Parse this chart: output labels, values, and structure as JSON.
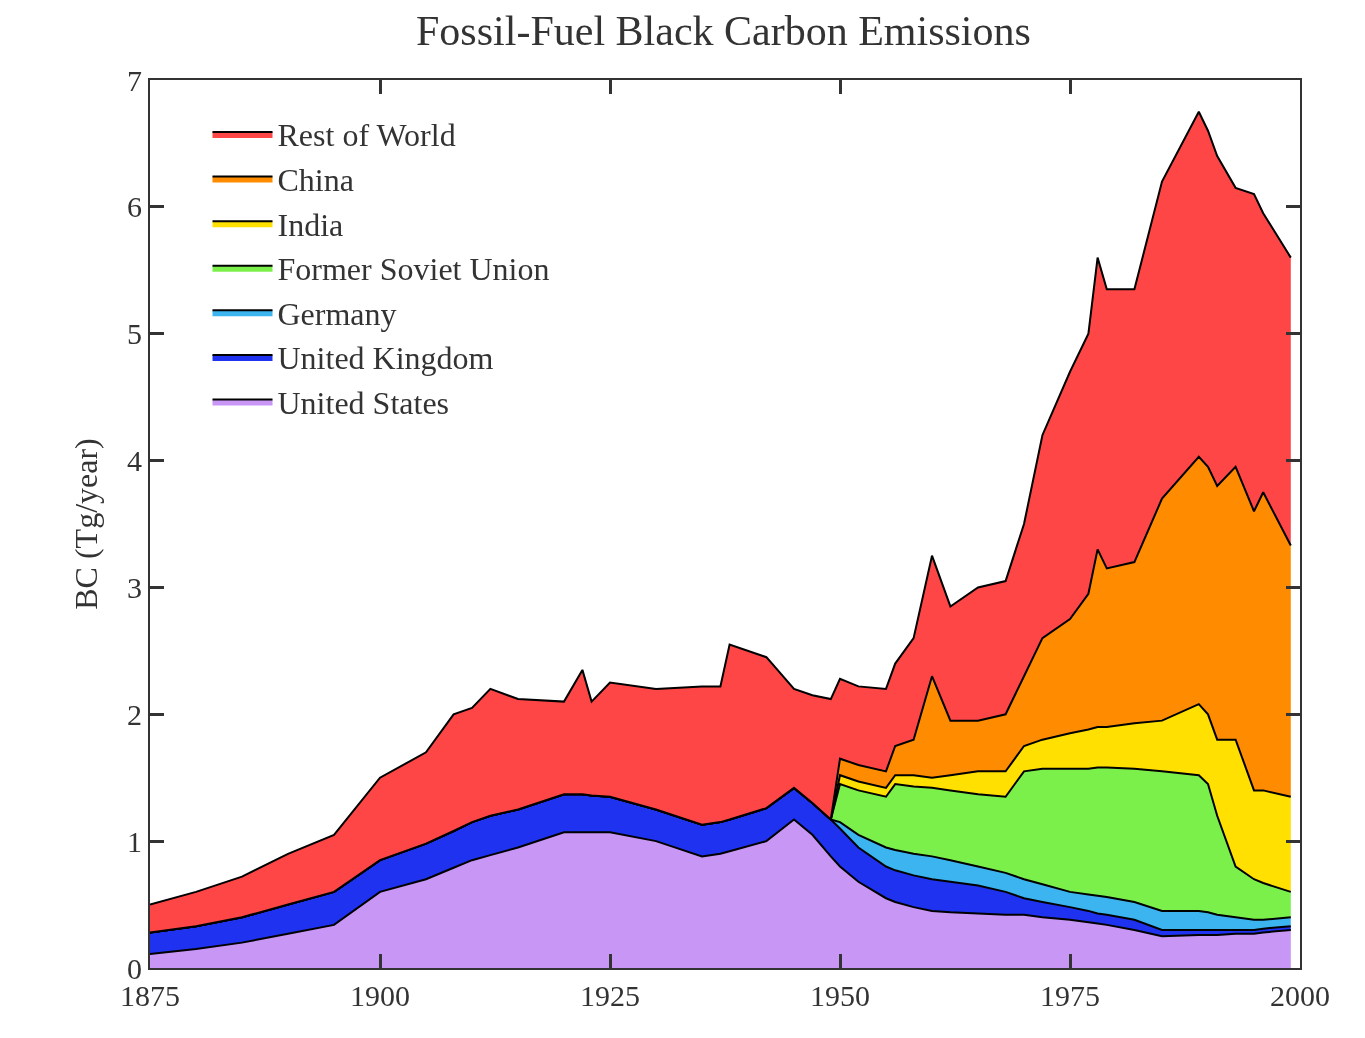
{
  "chart_data": {
    "type": "area",
    "stacked": true,
    "title": "Fossil-Fuel Black Carbon Emissions",
    "ylabel": "BC (Tg/year)",
    "x": [
      1875,
      1880,
      1885,
      1890,
      1895,
      1900,
      1905,
      1908,
      1910,
      1912,
      1915,
      1920,
      1922,
      1923,
      1925,
      1930,
      1935,
      1937,
      1938,
      1942,
      1945,
      1947,
      1949,
      1950,
      1952,
      1955,
      1956,
      1958,
      1960,
      1962,
      1965,
      1968,
      1970,
      1972,
      1975,
      1977,
      1978,
      1979,
      1982,
      1985,
      1989,
      1990,
      1991,
      1993,
      1995,
      1996,
      1999
    ],
    "series": [
      {
        "name": "United States",
        "color": "#c896f5",
        "values": [
          0.11,
          0.15,
          0.2,
          0.27,
          0.34,
          0.6,
          0.7,
          0.79,
          0.85,
          0.89,
          0.95,
          1.07,
          1.07,
          1.07,
          1.07,
          1.0,
          0.88,
          0.9,
          0.92,
          1.0,
          1.17,
          1.05,
          0.88,
          0.8,
          0.68,
          0.55,
          0.52,
          0.48,
          0.45,
          0.44,
          0.43,
          0.42,
          0.42,
          0.4,
          0.38,
          0.36,
          0.35,
          0.34,
          0.3,
          0.25,
          0.26,
          0.26,
          0.26,
          0.27,
          0.27,
          0.28,
          0.3
        ]
      },
      {
        "name": "United Kingdom",
        "color": "#1e32f0",
        "values": [
          0.17,
          0.18,
          0.2,
          0.23,
          0.26,
          0.25,
          0.28,
          0.29,
          0.3,
          0.31,
          0.3,
          0.3,
          0.3,
          0.29,
          0.28,
          0.25,
          0.25,
          0.25,
          0.25,
          0.26,
          0.25,
          0.25,
          0.29,
          0.3,
          0.27,
          0.25,
          0.25,
          0.25,
          0.25,
          0.24,
          0.22,
          0.18,
          0.13,
          0.12,
          0.1,
          0.09,
          0.08,
          0.08,
          0.08,
          0.05,
          0.04,
          0.04,
          0.04,
          0.03,
          0.03,
          0.03,
          0.03
        ]
      },
      {
        "name": "Germany",
        "color": "#3cb4f0",
        "values": [
          0,
          0,
          0,
          0,
          0,
          0,
          0,
          0,
          0,
          0,
          0,
          0,
          0,
          0,
          0,
          0,
          0,
          0,
          0,
          0,
          0,
          0,
          0,
          0.05,
          0.1,
          0.15,
          0.16,
          0.17,
          0.18,
          0.17,
          0.15,
          0.15,
          0.15,
          0.14,
          0.12,
          0.13,
          0.14,
          0.14,
          0.14,
          0.15,
          0.15,
          0.14,
          0.12,
          0.1,
          0.08,
          0.07,
          0.07
        ]
      },
      {
        "name": "Former Soviet Union",
        "color": "#7cf04a",
        "values": [
          0,
          0,
          0,
          0,
          0,
          0,
          0,
          0,
          0,
          0,
          0,
          0,
          0,
          0,
          0,
          0,
          0,
          0,
          0,
          0,
          0,
          0,
          0,
          0.3,
          0.35,
          0.4,
          0.52,
          0.53,
          0.54,
          0.55,
          0.57,
          0.6,
          0.85,
          0.91,
          0.97,
          0.99,
          1.01,
          1.02,
          1.05,
          1.1,
          1.07,
          1.01,
          0.78,
          0.4,
          0.32,
          0.29,
          0.2
        ]
      },
      {
        "name": "India",
        "color": "#ffe000",
        "values": [
          0,
          0,
          0,
          0,
          0,
          0,
          0,
          0,
          0,
          0,
          0,
          0,
          0,
          0,
          0,
          0,
          0,
          0,
          0,
          0,
          0,
          0,
          0,
          0.07,
          0.07,
          0.07,
          0.07,
          0.09,
          0.08,
          0.12,
          0.18,
          0.2,
          0.2,
          0.23,
          0.28,
          0.31,
          0.32,
          0.32,
          0.36,
          0.4,
          0.56,
          0.55,
          0.6,
          1.0,
          0.7,
          0.73,
          0.75
        ]
      },
      {
        "name": "China",
        "color": "#ff8c00",
        "values": [
          0,
          0,
          0,
          0,
          0,
          0,
          0,
          0,
          0,
          0,
          0,
          0,
          0,
          0,
          0,
          0,
          0,
          0,
          0,
          0,
          0,
          0,
          0,
          0.13,
          0.13,
          0.13,
          0.23,
          0.28,
          0.8,
          0.43,
          0.4,
          0.45,
          0.55,
          0.8,
          0.9,
          1.07,
          1.4,
          1.25,
          1.27,
          1.75,
          1.95,
          1.95,
          2.0,
          2.15,
          2.2,
          2.35,
          1.98
        ]
      },
      {
        "name": "Rest of World",
        "color": "#ff4646",
        "values": [
          0.22,
          0.27,
          0.32,
          0.4,
          0.45,
          0.65,
          0.72,
          0.92,
          0.9,
          1.0,
          0.87,
          0.73,
          0.98,
          0.74,
          0.9,
          0.95,
          1.09,
          1.07,
          1.38,
          1.19,
          0.78,
          0.85,
          0.95,
          0.63,
          0.62,
          0.65,
          0.65,
          0.8,
          0.95,
          0.9,
          1.05,
          1.05,
          1.2,
          1.6,
          1.95,
          2.05,
          2.3,
          2.2,
          2.15,
          2.5,
          2.72,
          2.65,
          2.6,
          2.2,
          2.5,
          2.2,
          2.27
        ]
      }
    ],
    "xlim": [
      1875,
      2000
    ],
    "xticks": [
      1875,
      1900,
      1925,
      1950,
      1975,
      2000
    ],
    "ylim": [
      0,
      7
    ],
    "yticks": [
      0,
      1,
      2,
      3,
      4,
      5,
      6,
      7
    ],
    "grid": false,
    "legend": "top left"
  }
}
